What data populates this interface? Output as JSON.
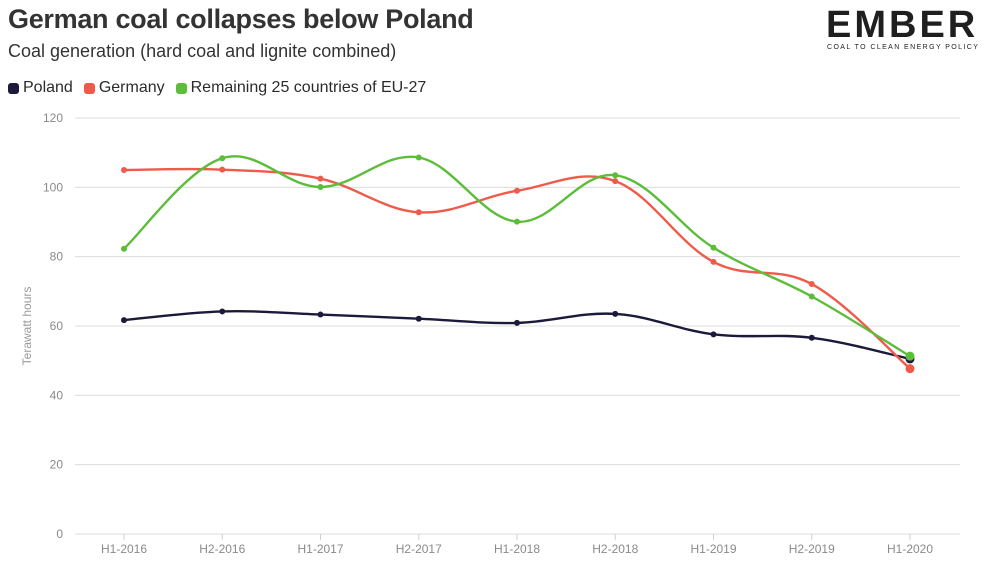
{
  "colors": {
    "poland": "#1b1a3a",
    "germany": "#ef5a4a",
    "eu25": "#5cbd3a",
    "grid": "#dcdcdc"
  },
  "logo": {
    "word": "EMBER",
    "tagline": "COAL TO CLEAN ENERGY POLICY"
  },
  "chart_data": {
    "type": "line",
    "title": "German coal collapses below Poland",
    "subtitle": "Coal generation (hard coal and lignite combined)",
    "ylabel": "Terawatt hours",
    "xlabel": "",
    "ylim": [
      0,
      120
    ],
    "yticks": [
      0,
      20,
      40,
      60,
      80,
      100,
      120
    ],
    "grid": true,
    "legend_position": "top-left",
    "categories": [
      "H1-2016",
      "H2-2016",
      "H1-2017",
      "H2-2017",
      "H1-2018",
      "H2-2018",
      "H1-2019",
      "H2-2019",
      "H1-2020"
    ],
    "series": [
      {
        "name": "Poland",
        "color": "#1b1a3a",
        "values": [
          61.7,
          64.2,
          63.3,
          62.1,
          60.9,
          63.5,
          57.6,
          56.6,
          50.5
        ]
      },
      {
        "name": "Germany",
        "color": "#ef5a4a",
        "values": [
          105.0,
          105.1,
          102.5,
          92.8,
          99.0,
          101.8,
          78.5,
          72.1,
          47.7
        ]
      },
      {
        "name": "Remaining 25 countries of EU-27",
        "color": "#5cbd3a",
        "values": [
          82.3,
          108.4,
          100.1,
          108.6,
          90.1,
          103.5,
          82.6,
          68.5,
          51.3
        ]
      }
    ]
  }
}
